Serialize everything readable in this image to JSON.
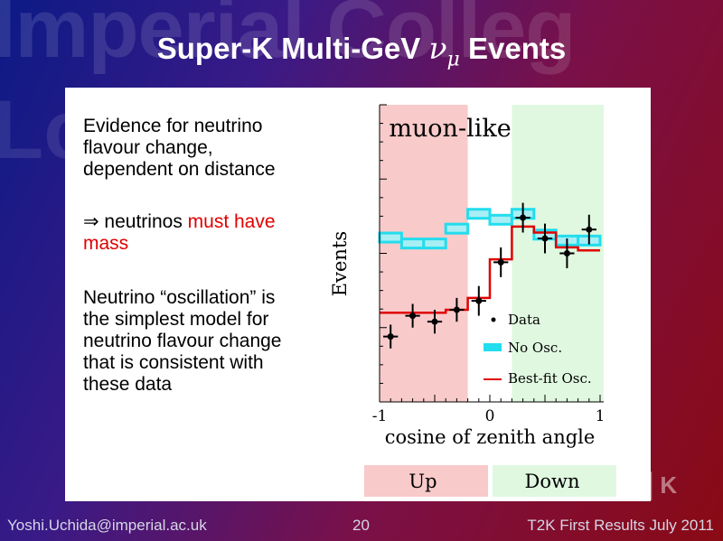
{
  "slide": {
    "title_text": "Super-K Multi-GeV ",
    "title_symbol": "ν",
    "title_sub": "μ",
    "title_suffix": " Events",
    "paragraph1": [
      "Evidence for neutrino",
      "flavour change,",
      "dependent on distance"
    ],
    "paragraph2_prefix": "⇒ neutrinos ",
    "paragraph2_highlight": "must have",
    "paragraph2_line2": "mass",
    "paragraph3": [
      "Neutrino “oscillation” is",
      "the simplest model for",
      "neutrino flavour change",
      "that is consistent with",
      "these data"
    ],
    "watermark": "Imperial College London",
    "footer_left": "Yoshi.Uchida@imperial.ac.uk",
    "footer_page": "20",
    "footer_right": "T2K First Results July 2011"
  },
  "colors": {
    "highlight_red": "#e00000",
    "up_region": "#f8caca",
    "down_region": "#e0f8e0",
    "no_osc": "#22ddee",
    "best_fit": "#e00000"
  },
  "chart_data": {
    "type": "line",
    "title": "muon-like",
    "xlabel": "cosine of zenith angle",
    "ylabel": "Events",
    "xlim": [
      -1,
      1
    ],
    "ylim": [
      0,
      1
    ],
    "x_ticks": [
      -1,
      0,
      1
    ],
    "regions": [
      {
        "label": "Up",
        "x_from": -1,
        "x_to": -0.2
      },
      {
        "label": "Down",
        "x_from": 0.2,
        "x_to": 1
      }
    ],
    "bins": [
      -0.9,
      -0.7,
      -0.5,
      -0.3,
      -0.1,
      0.1,
      0.3,
      0.5,
      0.7,
      0.9
    ],
    "bin_width": 0.2,
    "series": [
      {
        "name": "No Osc.",
        "style": "histogram",
        "values": [
          0.55,
          0.53,
          0.53,
          0.58,
          0.63,
          0.61,
          0.63,
          0.56,
          0.54,
          0.54
        ]
      },
      {
        "name": "Best-fit Osc.",
        "style": "histogram",
        "values": [
          0.3,
          0.3,
          0.3,
          0.31,
          0.35,
          0.48,
          0.59,
          0.57,
          0.52,
          0.51
        ]
      },
      {
        "name": "Data",
        "style": "points",
        "values": [
          0.22,
          0.29,
          0.27,
          0.31,
          0.34,
          0.47,
          0.62,
          0.55,
          0.5,
          0.58
        ],
        "errors": [
          0.04,
          0.04,
          0.04,
          0.04,
          0.05,
          0.05,
          0.05,
          0.05,
          0.05,
          0.05
        ]
      }
    ],
    "legend_position": "bottom-right"
  }
}
